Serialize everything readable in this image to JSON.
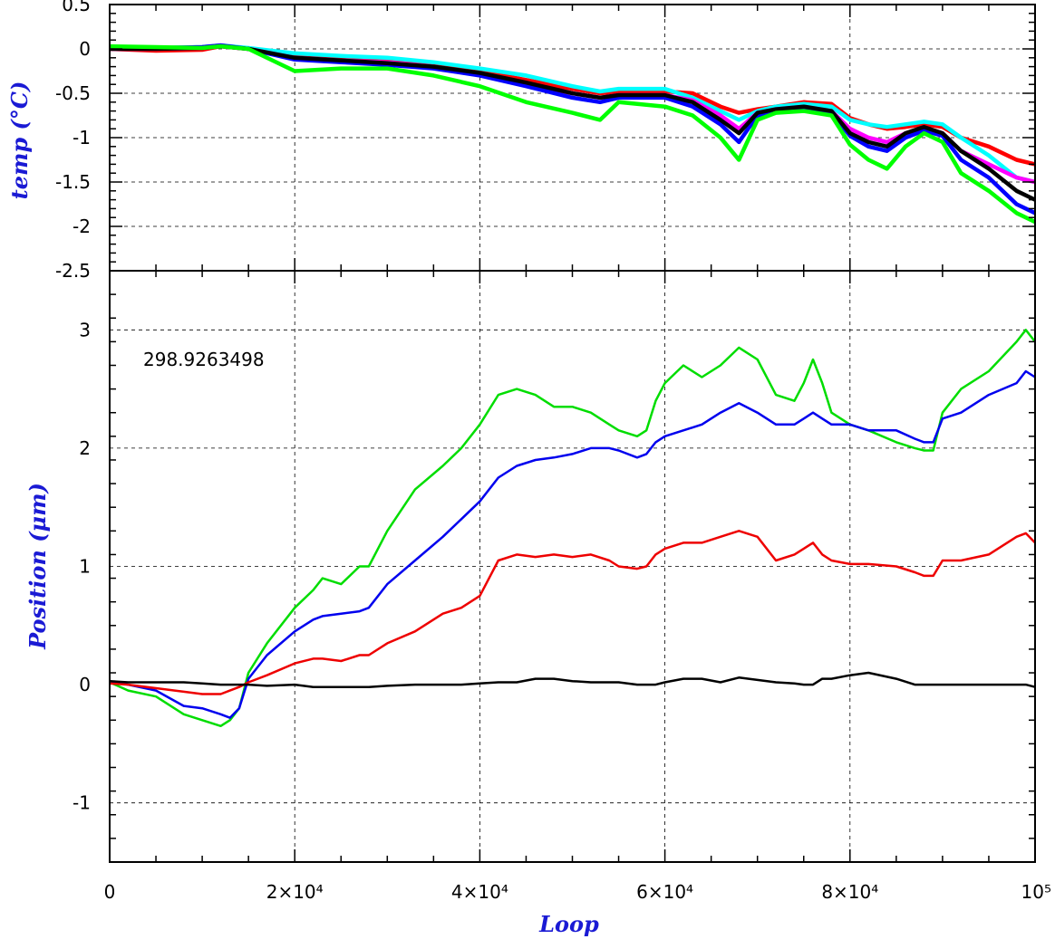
{
  "chart_data": [
    {
      "type": "line",
      "panel": "top",
      "ylabel": "temp (°C)",
      "xlim": [
        0,
        100000
      ],
      "ylim": [
        -2.5,
        0.5
      ],
      "ytick_labels": [
        "0.5",
        "0",
        "-0.5",
        "-1",
        "-1.5",
        "-2",
        "-2.5"
      ],
      "grid": true,
      "x": [
        0,
        5000,
        10000,
        12000,
        15000,
        20000,
        25000,
        30000,
        35000,
        40000,
        45000,
        50000,
        53000,
        55000,
        60000,
        63000,
        66000,
        68000,
        70000,
        72000,
        75000,
        78000,
        80000,
        82000,
        84000,
        86000,
        88000,
        90000,
        92000,
        95000,
        98000,
        100000
      ],
      "series": [
        {
          "color": "#ff0000",
          "values": [
            0,
            -0.02,
            -0.01,
            0.03,
            0,
            -0.08,
            -0.1,
            -0.12,
            -0.18,
            -0.25,
            -0.35,
            -0.45,
            -0.5,
            -0.48,
            -0.48,
            -0.5,
            -0.65,
            -0.72,
            -0.68,
            -0.65,
            -0.6,
            -0.62,
            -0.78,
            -0.85,
            -0.9,
            -0.88,
            -0.85,
            -0.88,
            -1.0,
            -1.1,
            -1.25,
            -1.3
          ]
        },
        {
          "color": "#00ffff",
          "values": [
            0.02,
            0.01,
            0.02,
            0.04,
            0.01,
            -0.05,
            -0.08,
            -0.1,
            -0.15,
            -0.22,
            -0.3,
            -0.42,
            -0.48,
            -0.45,
            -0.45,
            -0.55,
            -0.7,
            -0.8,
            -0.7,
            -0.65,
            -0.62,
            -0.65,
            -0.8,
            -0.85,
            -0.88,
            -0.85,
            -0.82,
            -0.85,
            -1.0,
            -1.2,
            -1.45,
            -1.5
          ]
        },
        {
          "color": "#ff00ff",
          "values": [
            0,
            0,
            0.01,
            0.03,
            0,
            -0.1,
            -0.13,
            -0.15,
            -0.2,
            -0.28,
            -0.4,
            -0.5,
            -0.55,
            -0.52,
            -0.52,
            -0.58,
            -0.75,
            -0.9,
            -0.72,
            -0.68,
            -0.65,
            -0.7,
            -0.9,
            -1.0,
            -1.05,
            -0.95,
            -0.9,
            -0.95,
            -1.15,
            -1.3,
            -1.45,
            -1.5
          ]
        },
        {
          "color": "#0000ff",
          "values": [
            0.01,
            0.01,
            0.02,
            0.04,
            0,
            -0.12,
            -0.15,
            -0.18,
            -0.22,
            -0.3,
            -0.42,
            -0.55,
            -0.6,
            -0.55,
            -0.55,
            -0.65,
            -0.85,
            -1.05,
            -0.75,
            -0.7,
            -0.68,
            -0.72,
            -0.98,
            -1.1,
            -1.15,
            -1.0,
            -0.92,
            -0.98,
            -1.25,
            -1.45,
            -1.75,
            -1.85
          ]
        },
        {
          "color": "#000000",
          "values": [
            0,
            0,
            0.01,
            0.03,
            0,
            -0.1,
            -0.13,
            -0.16,
            -0.2,
            -0.27,
            -0.38,
            -0.5,
            -0.55,
            -0.52,
            -0.52,
            -0.6,
            -0.8,
            -0.95,
            -0.72,
            -0.68,
            -0.65,
            -0.7,
            -0.95,
            -1.05,
            -1.1,
            -0.95,
            -0.88,
            -0.95,
            -1.15,
            -1.35,
            -1.6,
            -1.7
          ]
        },
        {
          "color": "#00ff00",
          "values": [
            0.03,
            0.02,
            0.01,
            0.03,
            0,
            -0.25,
            -0.22,
            -0.22,
            -0.3,
            -0.42,
            -0.6,
            -0.72,
            -0.8,
            -0.6,
            -0.65,
            -0.75,
            -1.0,
            -1.25,
            -0.8,
            -0.72,
            -0.7,
            -0.75,
            -1.08,
            -1.25,
            -1.35,
            -1.1,
            -0.95,
            -1.05,
            -1.4,
            -1.6,
            -1.85,
            -1.95
          ]
        }
      ]
    },
    {
      "type": "line",
      "panel": "bottom",
      "ylabel": "Position (μm)",
      "xlabel": "Loop",
      "xlim": [
        0,
        100000
      ],
      "ylim": [
        -1.5,
        3.5
      ],
      "xtick_labels": [
        "0",
        "2×10⁴",
        "4×10⁴",
        "6×10⁴",
        "8×10⁴",
        "10⁵"
      ],
      "ytick_labels": [
        "3",
        "2",
        "1",
        "0",
        "-1"
      ],
      "grid": true,
      "annotation": "298.9263498",
      "x": [
        0,
        2000,
        5000,
        8000,
        10000,
        12000,
        13000,
        14000,
        15000,
        17000,
        20000,
        22000,
        23000,
        25000,
        27000,
        28000,
        30000,
        33000,
        36000,
        38000,
        40000,
        42000,
        44000,
        46000,
        48000,
        50000,
        52000,
        54000,
        55000,
        57000,
        58000,
        59000,
        60000,
        62000,
        64000,
        66000,
        68000,
        70000,
        72000,
        74000,
        75000,
        76000,
        77000,
        78000,
        80000,
        82000,
        85000,
        87000,
        88000,
        89000,
        90000,
        92000,
        95000,
        98000,
        99000,
        100000
      ],
      "series": [
        {
          "color": "#00dd00",
          "values": [
            0.02,
            -0.05,
            -0.1,
            -0.25,
            -0.3,
            -0.35,
            -0.3,
            -0.2,
            0.1,
            0.35,
            0.65,
            0.8,
            0.9,
            0.85,
            1.0,
            1.0,
            1.3,
            1.65,
            1.85,
            2.0,
            2.2,
            2.45,
            2.5,
            2.45,
            2.35,
            2.35,
            2.3,
            2.2,
            2.15,
            2.1,
            2.15,
            2.4,
            2.55,
            2.7,
            2.6,
            2.7,
            2.85,
            2.75,
            2.45,
            2.4,
            2.55,
            2.75,
            2.55,
            2.3,
            2.2,
            2.15,
            2.05,
            2.0,
            1.98,
            1.98,
            2.3,
            2.5,
            2.65,
            2.9,
            3.0,
            2.9
          ]
        },
        {
          "color": "#0000ee",
          "values": [
            0.03,
            0,
            -0.05,
            -0.18,
            -0.2,
            -0.25,
            -0.28,
            -0.2,
            0.05,
            0.25,
            0.45,
            0.55,
            0.58,
            0.6,
            0.62,
            0.65,
            0.85,
            1.05,
            1.25,
            1.4,
            1.55,
            1.75,
            1.85,
            1.9,
            1.92,
            1.95,
            2.0,
            2.0,
            1.98,
            1.92,
            1.95,
            2.05,
            2.1,
            2.15,
            2.2,
            2.3,
            2.38,
            2.3,
            2.2,
            2.2,
            2.25,
            2.3,
            2.25,
            2.2,
            2.2,
            2.15,
            2.15,
            2.08,
            2.05,
            2.05,
            2.25,
            2.3,
            2.45,
            2.55,
            2.65,
            2.6
          ]
        },
        {
          "color": "#ee0000",
          "values": [
            0.01,
            0,
            -0.03,
            -0.06,
            -0.08,
            -0.08,
            -0.05,
            -0.02,
            0.02,
            0.08,
            0.18,
            0.22,
            0.22,
            0.2,
            0.25,
            0.25,
            0.35,
            0.45,
            0.6,
            0.65,
            0.75,
            1.05,
            1.1,
            1.08,
            1.1,
            1.08,
            1.1,
            1.05,
            1.0,
            0.98,
            1.0,
            1.1,
            1.15,
            1.2,
            1.2,
            1.25,
            1.3,
            1.25,
            1.05,
            1.1,
            1.15,
            1.2,
            1.1,
            1.05,
            1.02,
            1.02,
            1.0,
            0.95,
            0.92,
            0.92,
            1.05,
            1.05,
            1.1,
            1.25,
            1.28,
            1.2
          ]
        },
        {
          "color": "#000000",
          "values": [
            0.03,
            0.02,
            0.02,
            0.02,
            0.01,
            0,
            0,
            0,
            0,
            -0.01,
            0,
            -0.02,
            -0.02,
            -0.02,
            -0.02,
            -0.02,
            -0.01,
            0,
            0,
            0,
            0.01,
            0.02,
            0.02,
            0.05,
            0.05,
            0.03,
            0.02,
            0.02,
            0.02,
            0,
            0,
            0,
            0.02,
            0.05,
            0.05,
            0.02,
            0.06,
            0.04,
            0.02,
            0.01,
            0.0,
            0.0,
            0.05,
            0.05,
            0.08,
            0.1,
            0.05,
            0.0,
            0.0,
            0.0,
            0.0,
            0.0,
            0.0,
            0.0,
            0.0,
            -0.02
          ]
        }
      ]
    }
  ]
}
